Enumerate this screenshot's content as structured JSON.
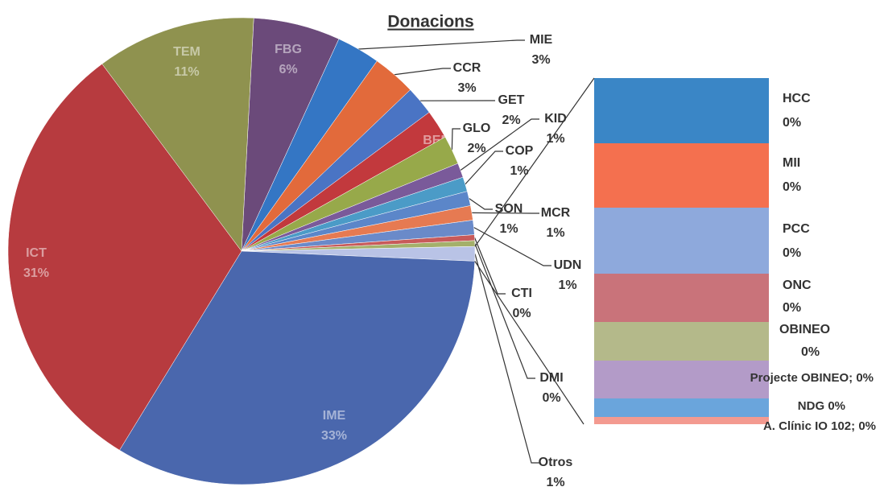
{
  "chart_data": {
    "type": "pie",
    "title": "Donacions",
    "categories": [
      "FBG",
      "MIE",
      "CCR",
      "GET",
      "BEM",
      "GLO",
      "KID",
      "COP",
      "SON",
      "MCR",
      "UDN",
      "CTI",
      "DMI",
      "Otros",
      "IME",
      "ICT",
      "TEM"
    ],
    "values": [
      6,
      3,
      3,
      2,
      2,
      2,
      1,
      1,
      1,
      1,
      1,
      0.4,
      0.4,
      1,
      33,
      31,
      11
    ],
    "value_labels": [
      "6%",
      "3%",
      "3%",
      "2%",
      "2%",
      "2%",
      "1%",
      "1%",
      "1%",
      "1%",
      "1%",
      "0%",
      "0%",
      "1%",
      "33%",
      "31%",
      "11%"
    ],
    "colors": [
      "#6b4a7a",
      "#3476c4",
      "#e26a3b",
      "#4a74c4",
      "#c2393d",
      "#97a94a",
      "#7a5a9a",
      "#4b9bc7",
      "#5b86c9",
      "#e67a52",
      "#6a8ac9",
      "#c85a5a",
      "#a4b06a",
      "#b9c3e6",
      "#4a67ad",
      "#b73b3f",
      "#8f924f"
    ],
    "bar": {
      "categories": [
        "HCC",
        "MII",
        "PCC",
        "ONC",
        "OBINEO",
        "Projecte OBINEO;",
        "NDG",
        "A. Clínic IO 102;"
      ],
      "values": [
        0.081,
        0.08,
        0.082,
        0.06,
        0.048,
        0.047,
        0.023,
        0.009
      ],
      "value_labels": [
        "0%",
        "0%",
        "0%",
        "0%",
        "0%",
        "0%",
        "0%",
        "0%"
      ],
      "colors": [
        "#3a86c6",
        "#f4704f",
        "#8ea9dc",
        "#c9737a",
        "#b4b98a",
        "#b39bc8",
        "#6aa5dc",
        "#f39a90"
      ]
    }
  }
}
